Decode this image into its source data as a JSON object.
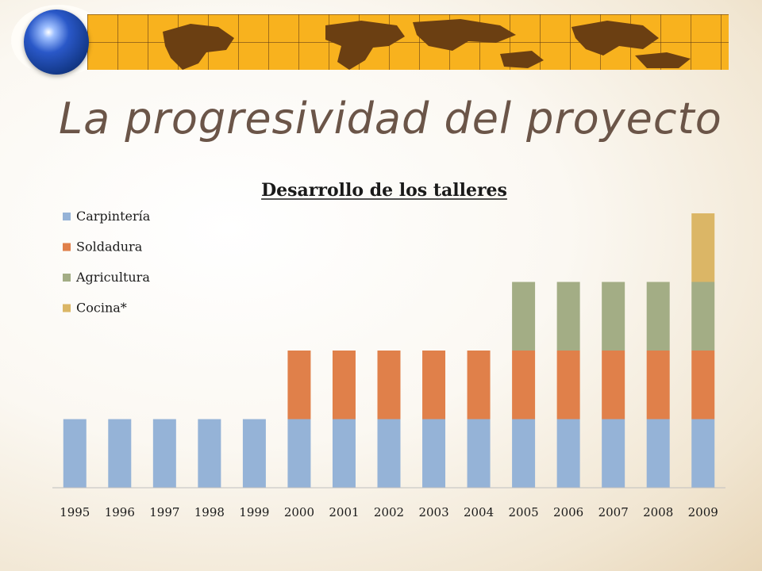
{
  "slide": {
    "title": "La progresividad del proyecto"
  },
  "decor": {
    "globe": "globe-icon",
    "banner": "world-map-banner"
  },
  "colors": {
    "Carpintería": "#95b3d7",
    "Soldadura": "#e0804a",
    "Agricultura": "#a3ad85",
    "Cocina*": "#dbb666",
    "banner": "#f8b21e",
    "title_text": "#6b5548"
  },
  "chart_data": {
    "type": "bar",
    "stacked": true,
    "title": "Desarrollo de los talleres",
    "xlabel": "",
    "ylabel": "",
    "legend_position": "top-left",
    "grid": false,
    "categories": [
      "1995",
      "1996",
      "1997",
      "1998",
      "1999",
      "2000",
      "2001",
      "2002",
      "2003",
      "2004",
      "2005",
      "2006",
      "2007",
      "2008",
      "2009"
    ],
    "series": [
      {
        "name": "Carpintería",
        "values": [
          1,
          1,
          1,
          1,
          1,
          1,
          1,
          1,
          1,
          1,
          1,
          1,
          1,
          1,
          1
        ]
      },
      {
        "name": "Soldadura",
        "values": [
          0,
          0,
          0,
          0,
          0,
          1,
          1,
          1,
          1,
          1,
          1,
          1,
          1,
          1,
          1
        ]
      },
      {
        "name": "Agricultura",
        "values": [
          0,
          0,
          0,
          0,
          0,
          0,
          0,
          0,
          0,
          0,
          1,
          1,
          1,
          1,
          1
        ]
      },
      {
        "name": "Cocina*",
        "values": [
          0,
          0,
          0,
          0,
          0,
          0,
          0,
          0,
          0,
          0,
          0,
          0,
          0,
          0,
          1
        ]
      }
    ],
    "ylim": [
      0,
      4
    ]
  }
}
